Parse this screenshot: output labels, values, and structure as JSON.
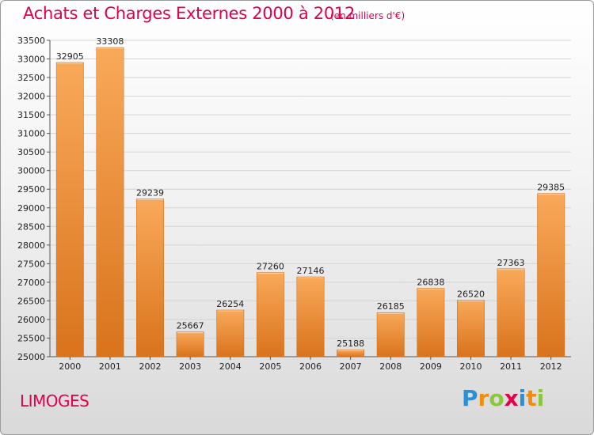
{
  "header": {
    "title": "Achats et Charges Externes 2000 à 2012",
    "subtitle": "(en milliers d'€)"
  },
  "footer": {
    "city": "LIMOGES",
    "brand": "Proxiti",
    "brand_colors": [
      "#2b8fd8",
      "#f28c0f",
      "#8cc63f",
      "#e0004d",
      "#2b8fd8",
      "#f28c0f",
      "#8cc63f"
    ]
  },
  "colors": {
    "accent": "#e0004d",
    "bar_light": "#f9a95a",
    "bar_dark": "#d9731c"
  },
  "chart_data": {
    "type": "bar",
    "categories": [
      "2000",
      "2001",
      "2002",
      "2003",
      "2004",
      "2005",
      "2006",
      "2007",
      "2008",
      "2009",
      "2010",
      "2011",
      "2012"
    ],
    "values": [
      32905,
      33308,
      29239,
      25667,
      26254,
      27260,
      27146,
      25188,
      26185,
      26838,
      26520,
      27363,
      29385
    ],
    "ylim": [
      25000,
      33500
    ],
    "yticks": [
      "25000",
      "25500",
      "26000",
      "26500",
      "27000",
      "27500",
      "28000",
      "28500",
      "29000",
      "29500",
      "30000",
      "30500",
      "31000",
      "31500",
      "32000",
      "32500",
      "33000",
      "33500"
    ],
    "grid": true,
    "xlabel": "",
    "ylabel": ""
  }
}
